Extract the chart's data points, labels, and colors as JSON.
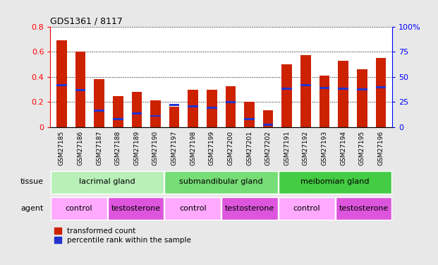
{
  "title": "GDS1361 / 8117",
  "samples": [
    "GSM27185",
    "GSM27186",
    "GSM27187",
    "GSM27188",
    "GSM27189",
    "GSM27190",
    "GSM27197",
    "GSM27198",
    "GSM27199",
    "GSM27200",
    "GSM27201",
    "GSM27202",
    "GSM27191",
    "GSM27192",
    "GSM27193",
    "GSM27194",
    "GSM27195",
    "GSM27196"
  ],
  "red_values": [
    0.69,
    0.6,
    0.38,
    0.245,
    0.28,
    0.215,
    0.165,
    0.3,
    0.295,
    0.325,
    0.2,
    0.135,
    0.5,
    0.57,
    0.41,
    0.53,
    0.46,
    0.55
  ],
  "blue_values": [
    0.335,
    0.295,
    0.13,
    0.065,
    0.11,
    0.09,
    0.175,
    0.165,
    0.155,
    0.2,
    0.065,
    0.02,
    0.305,
    0.335,
    0.31,
    0.305,
    0.3,
    0.315
  ],
  "tissue_groups": [
    {
      "label": "lacrimal gland",
      "start": 0,
      "end": 6,
      "color": "#b8f0b8"
    },
    {
      "label": "submandibular gland",
      "start": 6,
      "end": 12,
      "color": "#77dd77"
    },
    {
      "label": "meibomian gland",
      "start": 12,
      "end": 18,
      "color": "#44cc44"
    }
  ],
  "agent_groups": [
    {
      "label": "control",
      "start": 0,
      "end": 3,
      "color": "#ffaaff"
    },
    {
      "label": "testosterone",
      "start": 3,
      "end": 6,
      "color": "#dd55dd"
    },
    {
      "label": "control",
      "start": 6,
      "end": 9,
      "color": "#ffaaff"
    },
    {
      "label": "testosterone",
      "start": 9,
      "end": 12,
      "color": "#dd55dd"
    },
    {
      "label": "control",
      "start": 12,
      "end": 15,
      "color": "#ffaaff"
    },
    {
      "label": "testosterone",
      "start": 15,
      "end": 18,
      "color": "#dd55dd"
    }
  ],
  "bar_color": "#cc2200",
  "blue_color": "#2233cc",
  "ylim_left": [
    0,
    0.8
  ],
  "ylim_right": [
    0,
    100
  ],
  "yticks_left": [
    0,
    0.2,
    0.4,
    0.6,
    0.8
  ],
  "yticks_right": [
    0,
    25,
    50,
    75,
    100
  ],
  "ytick_labels_right": [
    "0",
    "25",
    "50",
    "75",
    "100%"
  ],
  "bar_width": 0.55,
  "background_color": "#e8e8e8",
  "plot_bg": "#ffffff",
  "xticklabel_bg": "#d0d0d0",
  "legend_red": "transformed count",
  "legend_blue": "percentile rank within the sample"
}
